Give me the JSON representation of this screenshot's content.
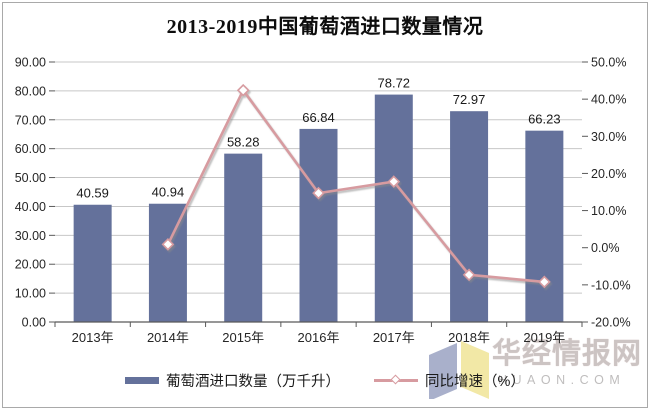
{
  "title": "2013-2019中国葡萄酒进口数量情况",
  "chart_data": {
    "type": "bar+line",
    "title": "2013-2019中国葡萄酒进口数量情况",
    "categories": [
      "2013年",
      "2014年",
      "2015年",
      "2016年",
      "2017年",
      "2018年",
      "2019年"
    ],
    "series": [
      {
        "name": "葡萄酒进口数量（万千升）",
        "type": "bar",
        "axis": "left",
        "values": [
          40.59,
          40.94,
          58.28,
          66.84,
          78.72,
          72.97,
          66.23
        ],
        "labels": [
          "40.59",
          "40.94",
          "58.28",
          "66.84",
          "78.72",
          "72.97",
          "66.23"
        ],
        "color": "#64719B"
      },
      {
        "name": "同比增速（%）",
        "type": "line",
        "axis": "right",
        "values": [
          null,
          0.9,
          42.4,
          14.7,
          17.8,
          -7.3,
          -9.2
        ],
        "color": "#D79BA0",
        "marker": "diamond",
        "marker_fill": "#FFFFFF"
      }
    ],
    "left_axis": {
      "min": 0,
      "max": 90,
      "step": 10,
      "tick_labels": [
        "90.00",
        "80.00",
        "70.00",
        "60.00",
        "50.00",
        "40.00",
        "30.00",
        "20.00",
        "10.00",
        "0.00"
      ]
    },
    "right_axis": {
      "min": -20,
      "max": 50,
      "step": 10,
      "tick_labels": [
        "50.0%",
        "40.0%",
        "30.0%",
        "20.0%",
        "10.0%",
        "0.0%",
        "-10.0%",
        "-20.0%"
      ]
    },
    "grid": true,
    "legend_position": "bottom",
    "colors": {
      "gridline": "#c7c7c7",
      "axis_line": "#595959",
      "axis_text": "#262626",
      "data_label": "#1a1a1a"
    }
  },
  "watermark": {
    "brand": "华经情报网",
    "domain": "HUAON.COM",
    "cube_left_color": "#A9B0CB",
    "cube_right_color": "#F2E8A6"
  }
}
